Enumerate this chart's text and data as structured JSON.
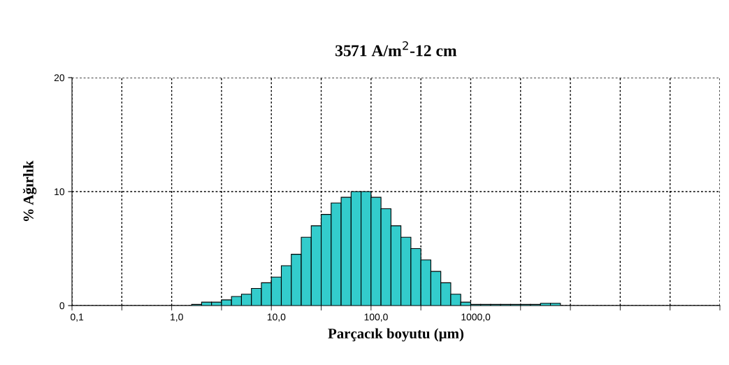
{
  "chart_data": {
    "type": "bar",
    "title": "3571 A/m$^{2}$-12 cm",
    "xlabel": "Parçacık boyutu (µm)",
    "ylabel": "% Ağırlık",
    "categories": [
      "0,1",
      null,
      null,
      null,
      null,
      null,
      null,
      null,
      null,
      null,
      "1,0",
      null,
      null,
      null,
      null,
      null,
      null,
      null,
      null,
      null,
      "10,0",
      null,
      null,
      null,
      null,
      null,
      null,
      null,
      null,
      null,
      "100,0",
      null,
      null,
      null,
      null,
      null,
      null,
      null,
      null,
      null,
      "1000,0",
      null,
      null,
      null,
      null,
      null,
      null,
      null,
      null,
      null,
      null,
      null,
      null,
      null,
      null,
      null,
      null,
      null,
      null,
      null,
      null,
      null,
      null,
      null,
      null
    ],
    "values": [
      0,
      0,
      0,
      0,
      0,
      0,
      0,
      0,
      0,
      0,
      0,
      0,
      0.1,
      0.3,
      0.3,
      0.5,
      0.8,
      1,
      1.5,
      2,
      2.5,
      3.5,
      4.5,
      6,
      7,
      8,
      9,
      9.5,
      10,
      10,
      9.5,
      8.5,
      7,
      6,
      5,
      4,
      3,
      2,
      1,
      0.3,
      0.1,
      0.1,
      0.1,
      0.1,
      0.1,
      0.1,
      0.1,
      0.2,
      0.2,
      0,
      0,
      0,
      0,
      0,
      0,
      0,
      0,
      0,
      0,
      0,
      0,
      0,
      0,
      0,
      0
    ],
    "color": "#33cccc",
    "ylim": [
      0,
      20
    ],
    "yticks": [
      0,
      10,
      20
    ],
    "grid": true
  }
}
